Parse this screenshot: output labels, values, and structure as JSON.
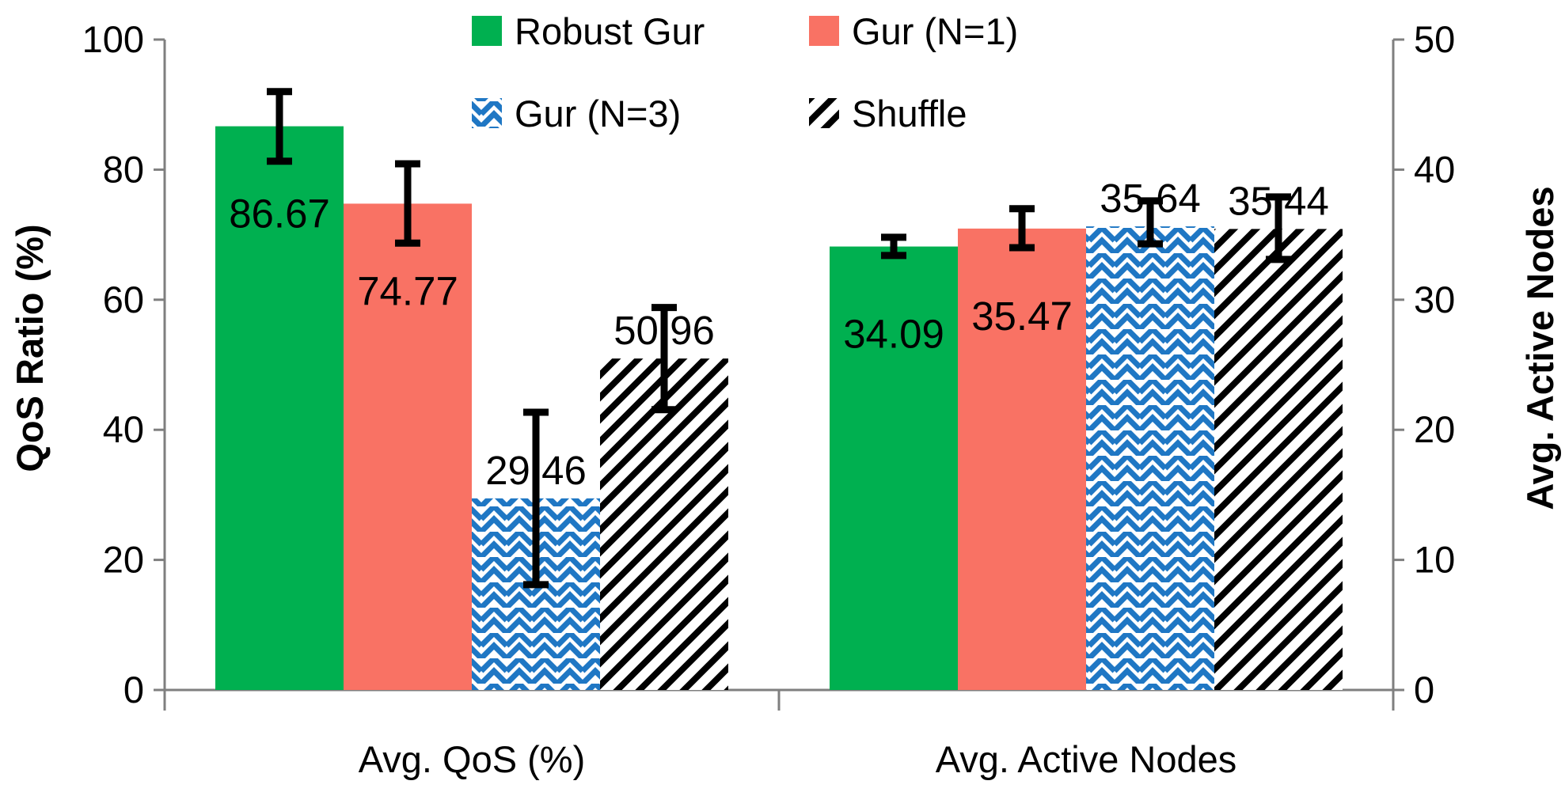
{
  "chart_data": {
    "type": "bar",
    "title": "",
    "categories": [
      "Avg. QoS (%)",
      "Avg. Active Nodes"
    ],
    "ylabel": "QoS Ratio (%)",
    "y2label": "Avg. Active Nodes",
    "ylim": [
      0,
      100
    ],
    "y2lim": [
      0,
      50
    ],
    "yticks": [
      "0",
      "20",
      "40",
      "60",
      "80",
      "100"
    ],
    "y2ticks": [
      "0",
      "10",
      "20",
      "30",
      "40",
      "50"
    ],
    "legend_position": "top",
    "series": [
      {
        "name": "Robust Gur",
        "color": "#00b050",
        "pattern": "solid",
        "values": [
          86.67,
          34.09
        ],
        "labels": [
          "86.67",
          "34.09"
        ],
        "error_low": [
          81.3,
          33.4
        ],
        "error_high": [
          92.0,
          34.8
        ]
      },
      {
        "name": "Gur (N=1)",
        "color": "#f97264",
        "pattern": "solid",
        "values": [
          74.77,
          35.47
        ],
        "labels": [
          "74.77",
          "35.47"
        ],
        "error_low": [
          68.7,
          34.0
        ],
        "error_high": [
          80.9,
          37.0
        ]
      },
      {
        "name": "Gur (N=3)",
        "color": "#1f77c4",
        "pattern": "zigzag",
        "values": [
          29.46,
          35.64
        ],
        "labels": [
          "29.46",
          "35.64"
        ],
        "error_low": [
          16.2,
          34.3
        ],
        "error_high": [
          42.7,
          37.6
        ]
      },
      {
        "name": "Shuffle",
        "color": "#000000",
        "pattern": "diagonal",
        "values": [
          50.96,
          35.44
        ],
        "labels": [
          "50.96",
          "35.44"
        ],
        "error_low": [
          43.1,
          33.1
        ],
        "error_high": [
          58.8,
          37.9
        ]
      }
    ]
  }
}
